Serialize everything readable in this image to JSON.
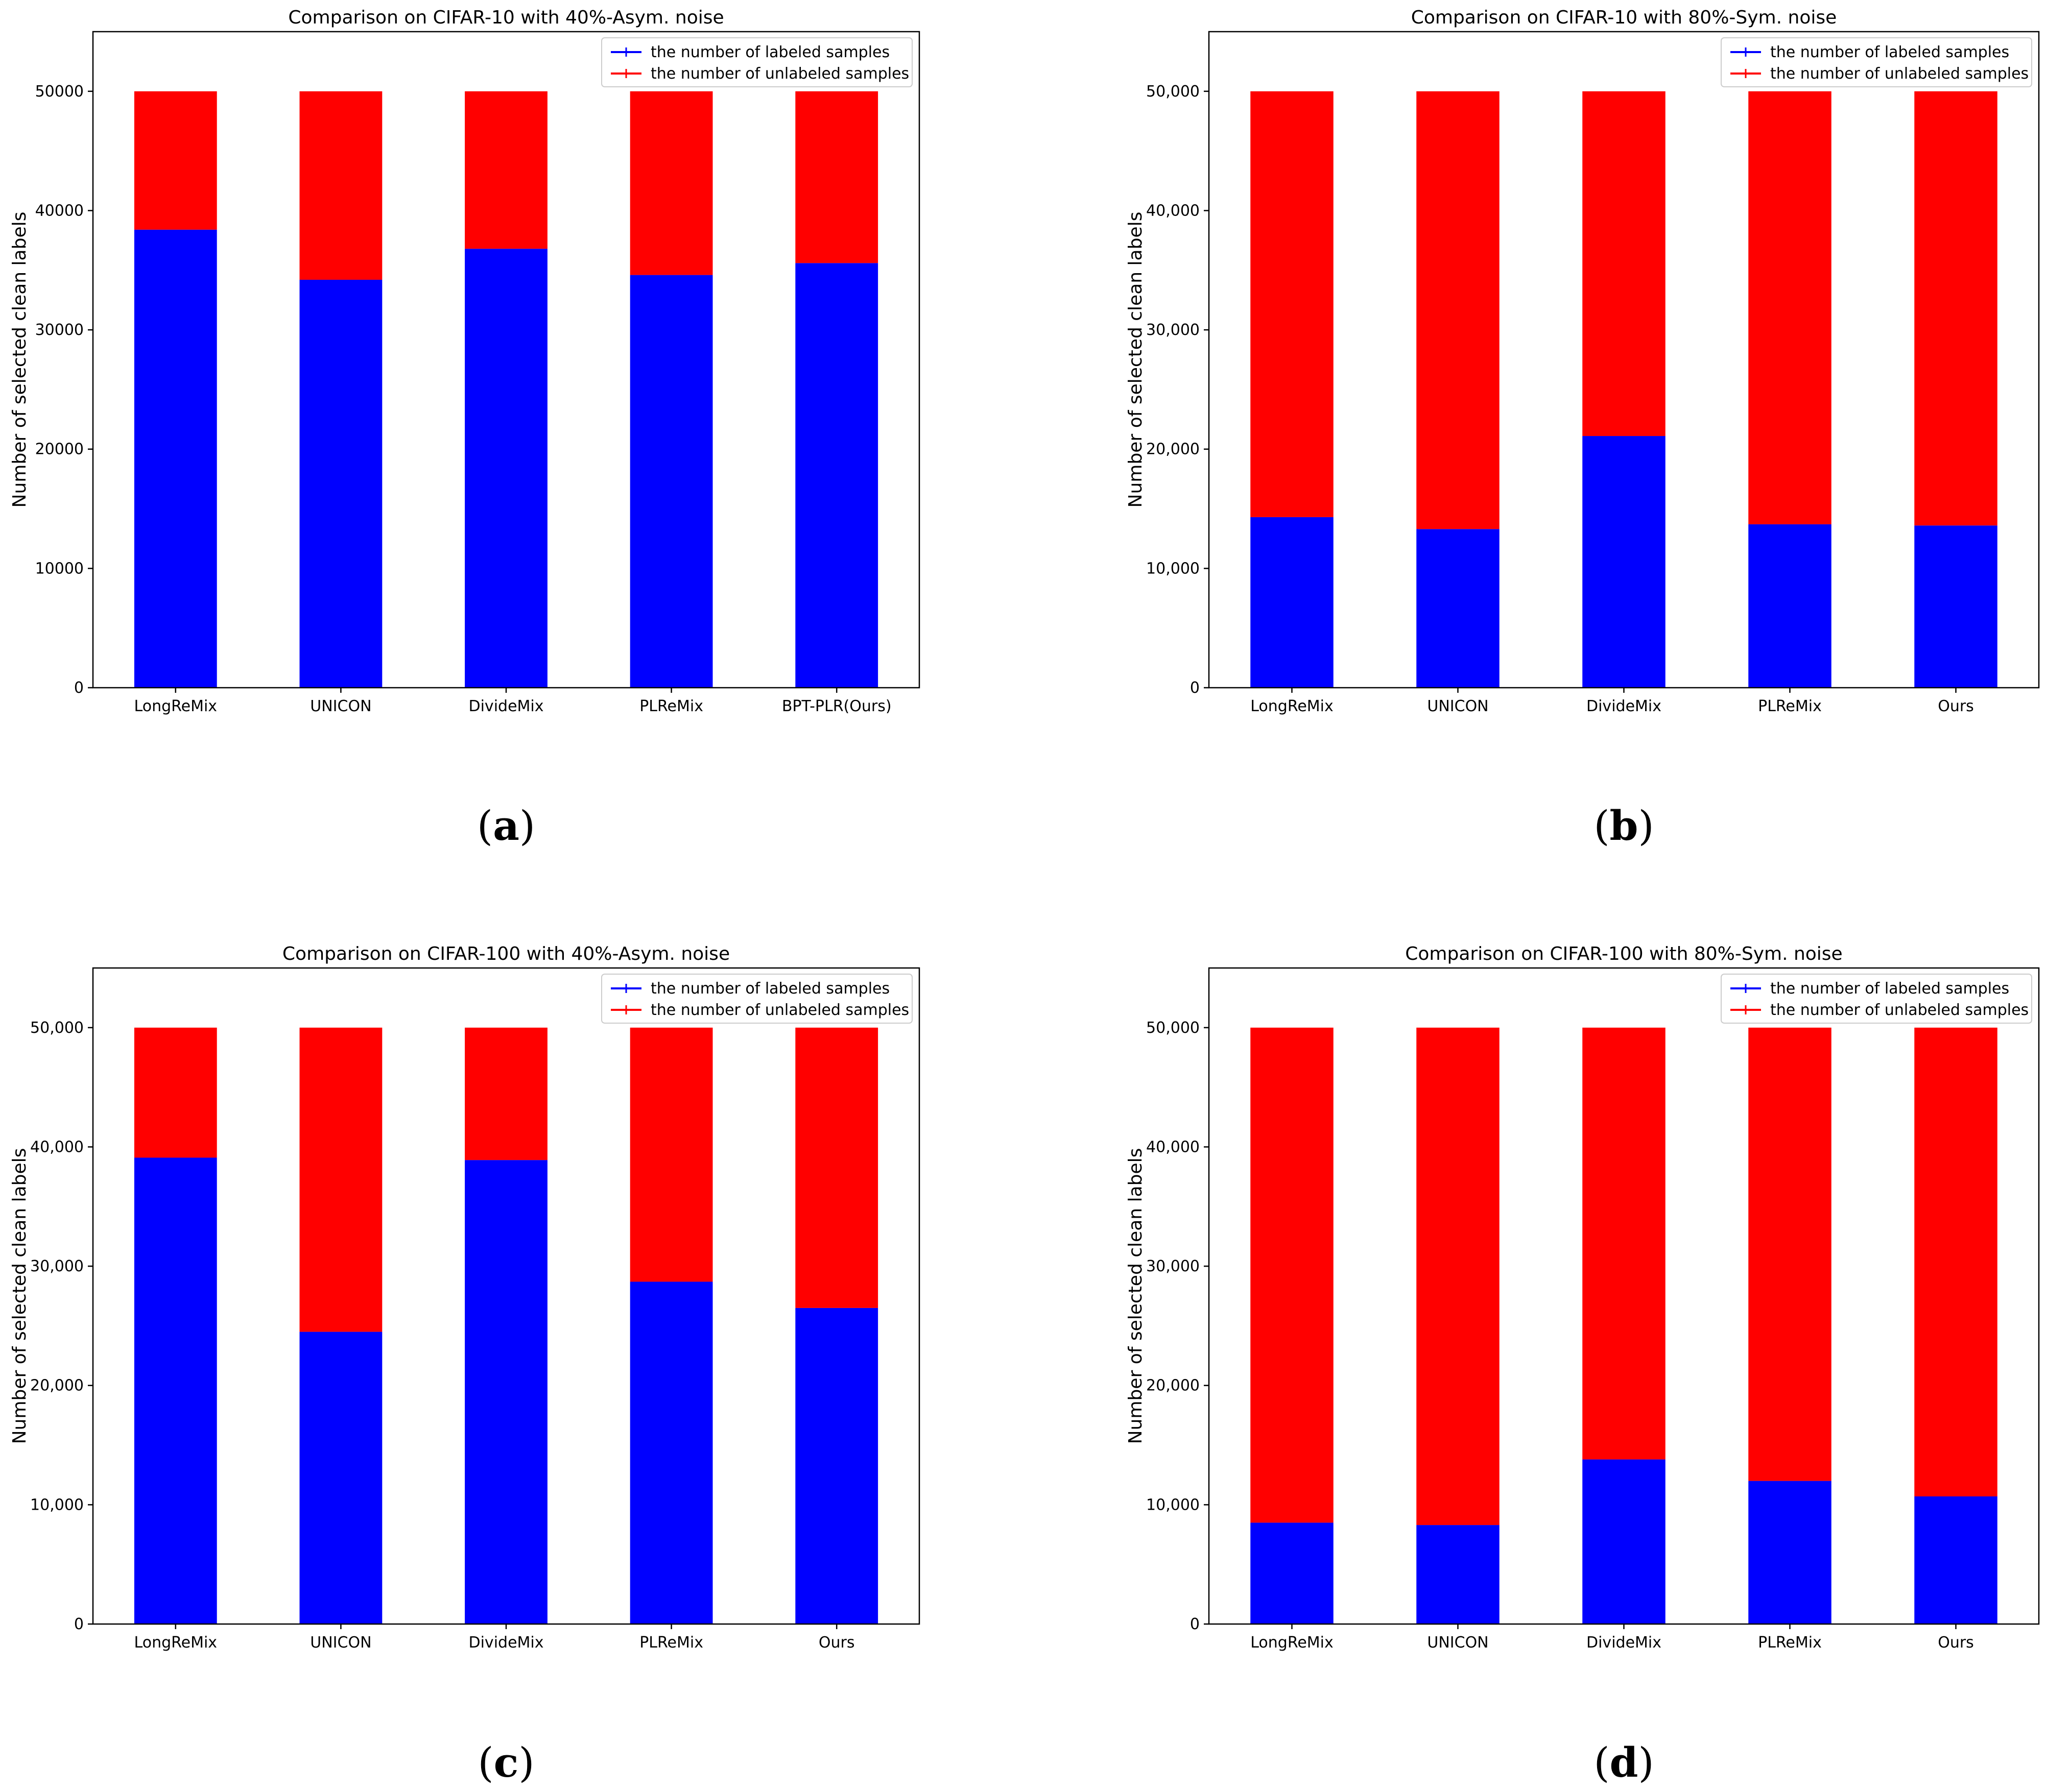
{
  "colors": {
    "labeled": "#0000ff",
    "unlabeled": "#ff0000",
    "axis": "#000000"
  },
  "chart_data": [
    {
      "type": "bar",
      "stacked": true,
      "panel_label": "a",
      "title": "Comparison on CIFAR-10 with 40%-Asym. noise",
      "ylabel": "Number of selected clean labels",
      "xlabel": "",
      "ylim": [
        0,
        55000
      ],
      "yticks": [
        0,
        10000,
        20000,
        30000,
        40000,
        50000
      ],
      "ytick_labels": [
        "0",
        "10000",
        "20000",
        "30000",
        "40000",
        "50000"
      ],
      "categories": [
        "LongReMix",
        "UNICON",
        "DivideMix",
        "PLReMix",
        "BPT-PLR(Ours)"
      ],
      "legend_position": "top-right",
      "series": [
        {
          "name": "the number of labeled samples",
          "color": "#0000ff",
          "values": [
            38400,
            34200,
            36800,
            34600,
            35600
          ]
        },
        {
          "name": "the number of unlabeled samples",
          "color": "#ff0000",
          "values": [
            11600,
            15800,
            13200,
            15400,
            14400
          ]
        }
      ]
    },
    {
      "type": "bar",
      "stacked": true,
      "panel_label": "b",
      "title": "Comparison on CIFAR-10 with 80%-Sym. noise",
      "ylabel": "Number of selected clean labels",
      "xlabel": "",
      "ylim": [
        0,
        55000
      ],
      "yticks": [
        0,
        10000,
        20000,
        30000,
        40000,
        50000
      ],
      "ytick_labels": [
        "0",
        "10,000",
        "20,000",
        "30,000",
        "40,000",
        "50,000"
      ],
      "categories": [
        "LongReMix",
        "UNICON",
        "DivideMix",
        "PLReMix",
        "Ours"
      ],
      "legend_position": "top-right",
      "series": [
        {
          "name": "the number of labeled samples",
          "color": "#0000ff",
          "values": [
            14300,
            13300,
            21100,
            13700,
            13600
          ]
        },
        {
          "name": "the number of unlabeled samples",
          "color": "#ff0000",
          "values": [
            35700,
            36700,
            28900,
            36300,
            36400
          ]
        }
      ]
    },
    {
      "type": "bar",
      "stacked": true,
      "panel_label": "c",
      "title": "Comparison on CIFAR-100 with 40%-Asym. noise",
      "ylabel": "Number of selected clean labels",
      "xlabel": "",
      "ylim": [
        0,
        55000
      ],
      "yticks": [
        0,
        10000,
        20000,
        30000,
        40000,
        50000
      ],
      "ytick_labels": [
        "0",
        "10,000",
        "20,000",
        "30,000",
        "40,000",
        "50,000"
      ],
      "categories": [
        "LongReMix",
        "UNICON",
        "DivideMix",
        "PLReMix",
        "Ours"
      ],
      "legend_position": "top-right",
      "series": [
        {
          "name": "the number of labeled samples",
          "color": "#0000ff",
          "values": [
            39100,
            24500,
            38900,
            28700,
            26500
          ]
        },
        {
          "name": "the number of unlabeled samples",
          "color": "#ff0000",
          "values": [
            10900,
            25500,
            11100,
            21300,
            23500
          ]
        }
      ]
    },
    {
      "type": "bar",
      "stacked": true,
      "panel_label": "d",
      "title": "Comparison on CIFAR-100 with 80%-Sym. noise",
      "ylabel": "Number of selected clean labels",
      "xlabel": "",
      "ylim": [
        0,
        55000
      ],
      "yticks": [
        0,
        10000,
        20000,
        30000,
        40000,
        50000
      ],
      "ytick_labels": [
        "0",
        "10,000",
        "20,000",
        "30,000",
        "40,000",
        "50,000"
      ],
      "categories": [
        "LongReMix",
        "UNICON",
        "DivideMix",
        "PLReMix",
        "Ours"
      ],
      "legend_position": "top-right",
      "series": [
        {
          "name": "the number of labeled samples",
          "color": "#0000ff",
          "values": [
            8500,
            8300,
            13800,
            12000,
            10700
          ]
        },
        {
          "name": "the number of unlabeled samples",
          "color": "#ff0000",
          "values": [
            41500,
            41700,
            36200,
            38000,
            39300
          ]
        }
      ]
    }
  ]
}
